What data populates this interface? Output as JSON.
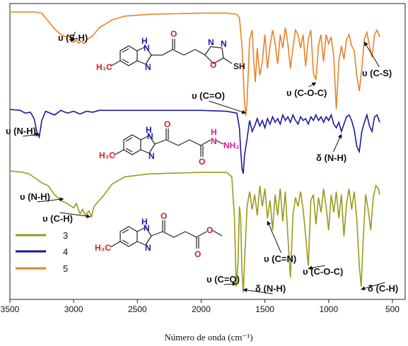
{
  "chart_data": {
    "type": "line",
    "title": "",
    "xlabel": "Número de onda (cm⁻¹)",
    "ylabel": "",
    "xlim": [
      3500,
      400
    ],
    "x_ticks": [
      "3500",
      "3000",
      "2500",
      "2000",
      "1500",
      "1000",
      "500"
    ],
    "x_tick_values": [
      3500,
      3000,
      2500,
      2000,
      1500,
      1000,
      500
    ],
    "legend_position": "bottom-left",
    "grid": false,
    "series": [
      {
        "name": "5",
        "color": "#E8832A",
        "points": [
          [
            3500,
            0.0
          ],
          [
            3300,
            0.0
          ],
          [
            3250,
            0.05
          ],
          [
            3200,
            0.4
          ],
          [
            3150,
            0.75
          ],
          [
            3100,
            1.0
          ],
          [
            3060,
            1.1
          ],
          [
            3040,
            1.05
          ],
          [
            3020,
            1.2
          ],
          [
            3000,
            1.35
          ],
          [
            2980,
            1.25
          ],
          [
            2960,
            1.38
          ],
          [
            2940,
            1.28
          ],
          [
            2920,
            1.4
          ],
          [
            2890,
            1.2
          ],
          [
            2850,
            1.05
          ],
          [
            2800,
            0.7
          ],
          [
            2700,
            0.35
          ],
          [
            2600,
            0.18
          ],
          [
            2400,
            0.1
          ],
          [
            2000,
            0.05
          ],
          [
            1800,
            0.05
          ],
          [
            1720,
            0.1
          ],
          [
            1700,
            0.25
          ],
          [
            1680,
            1.5
          ],
          [
            1660,
            4.0
          ],
          [
            1650,
            4.6
          ],
          [
            1640,
            4.0
          ],
          [
            1620,
            1.2
          ],
          [
            1600,
            0.8
          ],
          [
            1585,
            2.4
          ],
          [
            1575,
            3.1
          ],
          [
            1560,
            1.6
          ],
          [
            1540,
            2.8
          ],
          [
            1520,
            2.2
          ],
          [
            1500,
            1.0
          ],
          [
            1480,
            2.5
          ],
          [
            1460,
            1.5
          ],
          [
            1440,
            0.8
          ],
          [
            1420,
            1.4
          ],
          [
            1400,
            2.3
          ],
          [
            1380,
            1.0
          ],
          [
            1360,
            1.6
          ],
          [
            1340,
            0.7
          ],
          [
            1320,
            1.4
          ],
          [
            1300,
            2.5
          ],
          [
            1280,
            1.6
          ],
          [
            1260,
            0.8
          ],
          [
            1240,
            1.0
          ],
          [
            1220,
            1.6
          ],
          [
            1200,
            1.0
          ],
          [
            1180,
            2.4
          ],
          [
            1160,
            1.2
          ],
          [
            1140,
            0.8
          ],
          [
            1120,
            2.7
          ],
          [
            1100,
            3.0
          ],
          [
            1080,
            1.5
          ],
          [
            1060,
            1.0
          ],
          [
            1040,
            2.2
          ],
          [
            1020,
            1.0
          ],
          [
            1000,
            1.4
          ],
          [
            980,
            1.1
          ],
          [
            960,
            2.0
          ],
          [
            940,
            4.3
          ],
          [
            920,
            2.2
          ],
          [
            900,
            1.5
          ],
          [
            880,
            2.1
          ],
          [
            860,
            1.2
          ],
          [
            840,
            1.0
          ],
          [
            820,
            1.5
          ],
          [
            800,
            1.7
          ],
          [
            780,
            2.8
          ],
          [
            760,
            3.5
          ],
          [
            740,
            2.5
          ],
          [
            720,
            1.2
          ],
          [
            700,
            0.9
          ],
          [
            680,
            1.5
          ],
          [
            660,
            2.0
          ],
          [
            640,
            1.0
          ],
          [
            620,
            0.8
          ],
          [
            600,
            1.1
          ]
        ]
      },
      {
        "name": "4",
        "color": "#1A1A9A",
        "points": [
          [
            3500,
            0.0
          ],
          [
            3420,
            0.05
          ],
          [
            3380,
            0.2
          ],
          [
            3340,
            0.15
          ],
          [
            3310,
            0.5
          ],
          [
            3290,
            1.2
          ],
          [
            3270,
            1.5
          ],
          [
            3250,
            0.6
          ],
          [
            3220,
            0.1
          ],
          [
            3150,
            0.3
          ],
          [
            3100,
            0.05
          ],
          [
            3050,
            0.2
          ],
          [
            3000,
            0.1
          ],
          [
            2950,
            0.25
          ],
          [
            2900,
            0.1
          ],
          [
            2850,
            0.15
          ],
          [
            2800,
            0.05
          ],
          [
            2600,
            0.05
          ],
          [
            2000,
            0.05
          ],
          [
            1800,
            0.1
          ],
          [
            1720,
            0.2
          ],
          [
            1700,
            1.0
          ],
          [
            1690,
            2.2
          ],
          [
            1680,
            3.2
          ],
          [
            1670,
            3.5
          ],
          [
            1660,
            2.5
          ],
          [
            1640,
            1.6
          ],
          [
            1620,
            0.6
          ],
          [
            1600,
            1.2
          ],
          [
            1580,
            0.9
          ],
          [
            1560,
            0.5
          ],
          [
            1540,
            0.9
          ],
          [
            1520,
            0.6
          ],
          [
            1500,
            1.0
          ],
          [
            1480,
            0.5
          ],
          [
            1460,
            0.8
          ],
          [
            1440,
            0.4
          ],
          [
            1420,
            0.7
          ],
          [
            1400,
            0.5
          ],
          [
            1380,
            0.8
          ],
          [
            1360,
            0.3
          ],
          [
            1340,
            0.6
          ],
          [
            1320,
            0.4
          ],
          [
            1300,
            0.7
          ],
          [
            1280,
            0.3
          ],
          [
            1260,
            0.6
          ],
          [
            1240,
            0.8
          ],
          [
            1220,
            0.4
          ],
          [
            1200,
            0.6
          ],
          [
            1180,
            0.5
          ],
          [
            1160,
            0.8
          ],
          [
            1140,
            0.4
          ],
          [
            1120,
            0.6
          ],
          [
            1100,
            0.3
          ],
          [
            1080,
            0.6
          ],
          [
            1060,
            0.4
          ],
          [
            1040,
            0.7
          ],
          [
            1020,
            0.4
          ],
          [
            1000,
            0.6
          ],
          [
            980,
            0.3
          ],
          [
            960,
            0.8
          ],
          [
            940,
            1.0
          ],
          [
            920,
            0.7
          ],
          [
            900,
            1.2
          ],
          [
            880,
            0.8
          ],
          [
            860,
            0.4
          ],
          [
            840,
            0.3
          ],
          [
            820,
            0.6
          ],
          [
            800,
            1.1
          ],
          [
            780,
            2.0
          ],
          [
            760,
            2.3
          ],
          [
            740,
            1.2
          ],
          [
            720,
            0.7
          ],
          [
            700,
            0.3
          ],
          [
            680,
            0.9
          ],
          [
            660,
            1.2
          ],
          [
            640,
            0.4
          ],
          [
            620,
            0.3
          ],
          [
            600,
            0.7
          ]
        ]
      },
      {
        "name": "3",
        "color": "#9A9A1E",
        "points": [
          [
            3500,
            0.0
          ],
          [
            3400,
            0.05
          ],
          [
            3350,
            0.1
          ],
          [
            3300,
            0.25
          ],
          [
            3250,
            0.4
          ],
          [
            3200,
            0.5
          ],
          [
            3150,
            0.8
          ],
          [
            3100,
            1.0
          ],
          [
            3050,
            1.1
          ],
          [
            3000,
            1.25
          ],
          [
            2980,
            1.1
          ],
          [
            2950,
            1.45
          ],
          [
            2930,
            1.3
          ],
          [
            2910,
            1.5
          ],
          [
            2880,
            1.35
          ],
          [
            2860,
            1.55
          ],
          [
            2840,
            1.2
          ],
          [
            2800,
            1.0
          ],
          [
            2760,
            0.8
          ],
          [
            2700,
            0.45
          ],
          [
            2600,
            0.2
          ],
          [
            2400,
            0.1
          ],
          [
            2000,
            0.05
          ],
          [
            1800,
            0.05
          ],
          [
            1760,
            0.2
          ],
          [
            1740,
            1.5
          ],
          [
            1725,
            3.9
          ],
          [
            1710,
            3.0
          ],
          [
            1700,
            1.2
          ],
          [
            1690,
            1.6
          ],
          [
            1680,
            3.4
          ],
          [
            1670,
            4.1
          ],
          [
            1660,
            3.1
          ],
          [
            1640,
            1.2
          ],
          [
            1620,
            0.7
          ],
          [
            1600,
            1.3
          ],
          [
            1580,
            0.8
          ],
          [
            1560,
            1.5
          ],
          [
            1540,
            0.5
          ],
          [
            1520,
            1.2
          ],
          [
            1500,
            0.6
          ],
          [
            1480,
            1.6
          ],
          [
            1460,
            1.0
          ],
          [
            1440,
            2.0
          ],
          [
            1420,
            0.8
          ],
          [
            1400,
            1.5
          ],
          [
            1380,
            0.6
          ],
          [
            1360,
            1.7
          ],
          [
            1340,
            0.7
          ],
          [
            1320,
            2.2
          ],
          [
            1300,
            3.6
          ],
          [
            1280,
            1.5
          ],
          [
            1260,
            0.9
          ],
          [
            1240,
            1.2
          ],
          [
            1220,
            0.7
          ],
          [
            1200,
            1.3
          ],
          [
            1180,
            2.2
          ],
          [
            1160,
            3.2
          ],
          [
            1140,
            1.0
          ],
          [
            1120,
            0.8
          ],
          [
            1100,
            1.8
          ],
          [
            1080,
            0.9
          ],
          [
            1060,
            1.4
          ],
          [
            1040,
            0.6
          ],
          [
            1020,
            1.2
          ],
          [
            1000,
            2.0
          ],
          [
            980,
            0.8
          ],
          [
            960,
            1.4
          ],
          [
            940,
            0.7
          ],
          [
            920,
            1.6
          ],
          [
            900,
            0.8
          ],
          [
            880,
            2.2
          ],
          [
            860,
            1.1
          ],
          [
            840,
            0.6
          ],
          [
            820,
            1.3
          ],
          [
            800,
            0.7
          ],
          [
            780,
            1.6
          ],
          [
            760,
            3.2
          ],
          [
            745,
            3.9
          ],
          [
            730,
            2.4
          ],
          [
            710,
            0.8
          ],
          [
            690,
            1.3
          ],
          [
            670,
            2.0
          ],
          [
            650,
            0.9
          ],
          [
            630,
            0.5
          ],
          [
            610,
            0.6
          ],
          [
            600,
            0.8
          ]
        ]
      }
    ],
    "annotations": [
      {
        "text": "υ (S-H)",
        "series": "5",
        "x": 3020
      },
      {
        "text": "υ (C=O)",
        "series": "5",
        "x": 1650
      },
      {
        "text": "υ (C-O-C)",
        "series": "5",
        "x": 1100
      },
      {
        "text": "υ (C-S)",
        "series": "5",
        "x": 720
      },
      {
        "text": "υ (N-H)",
        "series": "4",
        "x": 3270
      },
      {
        "text": "δ (N-H)",
        "series": "4",
        "x": 900
      },
      {
        "text": "υ (N-H)",
        "series": "3",
        "x": 3080
      },
      {
        "text": "υ (C-H)",
        "series": "3",
        "x": 2870
      },
      {
        "text": "υ (C=O)",
        "series": "3",
        "x": 1725
      },
      {
        "text": "δ (N-H)",
        "series": "3",
        "x": 1670
      },
      {
        "text": "υ (C=N)",
        "series": "3",
        "x": 1480
      },
      {
        "text": "υ (C-O-C)",
        "series": "3",
        "x": 1160
      },
      {
        "text": "δ (C-H)",
        "series": "3",
        "x": 745
      }
    ]
  },
  "structures": {
    "s5": {
      "labels": [
        "H",
        "N",
        "N",
        "O",
        "N",
        "N",
        "O",
        "SH",
        "H₃C"
      ]
    },
    "s4": {
      "labels": [
        "H",
        "N",
        "N",
        "O",
        "O",
        "N",
        "H",
        "NH₂",
        "H₃C"
      ]
    },
    "s3": {
      "labels": [
        "H",
        "N",
        "N",
        "O",
        "O",
        "O",
        "H₃C"
      ]
    }
  },
  "colors": {
    "s5": "#E8832A",
    "s4": "#1A1A9A",
    "s3": "#9A9A1E",
    "hetero_red": "#D42020",
    "hetero_blue": "#1A1AB0",
    "hetero_pink": "#D0208A"
  }
}
